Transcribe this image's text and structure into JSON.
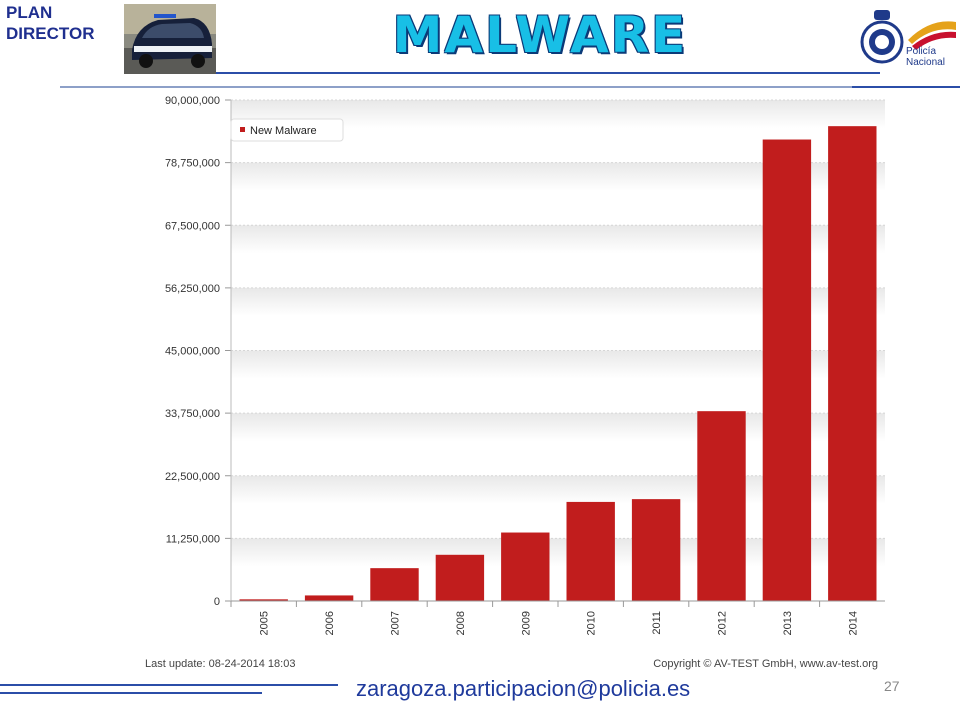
{
  "header": {
    "plan_line1": "PLAN",
    "plan_line2": "DIRECTOR",
    "title": "MALWARE",
    "logo_text_line1": "Policía",
    "logo_text_line2": "Nacional"
  },
  "chart_data": {
    "type": "bar",
    "categories": [
      "2005",
      "2006",
      "2007",
      "2008",
      "2009",
      "2010",
      "2011",
      "2012",
      "2013",
      "2014"
    ],
    "series": [
      {
        "name": "New Malware",
        "values": [
          300000,
          1000000,
          5900000,
          8300000,
          12300000,
          17800000,
          18300000,
          34100000,
          82900000,
          85300000
        ]
      }
    ],
    "yticks": [
      "0",
      "11,250,000",
      "22,500,000",
      "33,750,000",
      "45,000,000",
      "56,250,000",
      "67,500,000",
      "78,750,000",
      "90,000,000"
    ],
    "ylim": [
      0,
      90000000
    ],
    "legend_position": "top-left",
    "bar_color": "#c11d1d",
    "last_update": "Last update: 08-24-2014 18:03",
    "copyright": "Copyright © AV-TEST GmbH, www.av-test.org"
  },
  "footer": {
    "email": "zaragoza.participacion@policia.es",
    "page_number": "27"
  }
}
